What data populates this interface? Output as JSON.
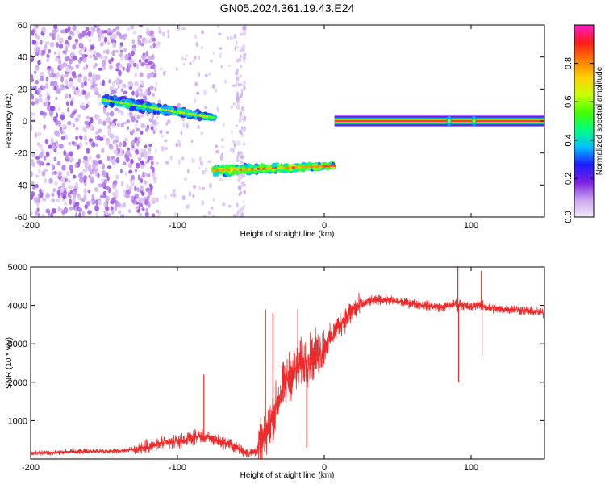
{
  "figure": {
    "title": "GN05.2024.361.19.43.E24"
  },
  "chart_data": [
    {
      "type": "heatmap",
      "name": "spectrogram",
      "xlabel": "Height of straight line (km)",
      "ylabel": "Frequency (Hz)",
      "xlim": [
        -200,
        150
      ],
      "ylim": [
        -60,
        60
      ],
      "xticks": [
        -200,
        -100,
        0,
        100
      ],
      "yticks": [
        -60,
        -40,
        -20,
        0,
        20,
        40,
        60
      ],
      "colorbar": {
        "label": "Normalized spectral amplitude",
        "range": [
          0,
          1
        ],
        "ticks": [
          0.0,
          0.2,
          0.4,
          0.6,
          0.8
        ],
        "tick_labels": [
          "0.0",
          "0.2",
          "0.4",
          "0.6",
          "0.8"
        ],
        "colormap": [
          "#f4ecfb",
          "#c9a2ee",
          "#7a1fe0",
          "#1d1dff",
          "#00bfff",
          "#00ff80",
          "#44ff00",
          "#c8ff00",
          "#ffd000",
          "#ff7a00",
          "#ff1a1a",
          "#ff1acb"
        ]
      },
      "features": [
        {
          "label": "scattered noise",
          "x_range": [
            -200,
            -115
          ],
          "y_range": [
            -60,
            60
          ],
          "amplitude": 0.12
        },
        {
          "label": "scattered noise sparse",
          "x_range": [
            -115,
            -55
          ],
          "y_range": [
            -60,
            60
          ],
          "amplitude": 0.06
        },
        {
          "label": "doppler track 1",
          "x_range": [
            -150,
            -75
          ],
          "y_start": 13,
          "y_end": 2,
          "amplitude": 0.38
        },
        {
          "label": "doppler track 2",
          "x_range": [
            -75,
            7
          ],
          "y_start": -31,
          "y_end": -28,
          "amplitude": 0.5
        },
        {
          "label": "carrier line",
          "x_range": [
            7,
            150
          ],
          "y": 0,
          "amplitude": 0.95
        }
      ]
    },
    {
      "type": "line",
      "name": "snr",
      "xlabel": "Height of straight line (km)",
      "ylabel": "SNR (10 * v/v)",
      "xlim": [
        -200,
        150
      ],
      "ylim": [
        0,
        5000
      ],
      "xticks": [
        -200,
        -100,
        0,
        100
      ],
      "yticks": [
        1000,
        2000,
        3000,
        4000,
        5000
      ],
      "color": "#ee2a2a",
      "series": [
        {
          "x": [
            -200,
            -180,
            -160,
            -140,
            -130,
            -120,
            -110,
            -100,
            -95,
            -90,
            -85,
            -80,
            -75,
            -70,
            -65,
            -60,
            -55,
            -50,
            -45,
            -40,
            -35,
            -30,
            -25,
            -20,
            -15,
            -10,
            -5,
            0,
            5,
            10,
            15,
            20,
            25,
            30,
            40,
            50,
            60,
            70,
            80,
            85,
            90,
            91,
            92,
            95,
            100,
            105,
            107,
            108,
            110,
            120,
            130,
            140,
            150
          ],
          "values": [
            150,
            180,
            200,
            210,
            250,
            320,
            400,
            450,
            500,
            540,
            600,
            550,
            500,
            440,
            400,
            300,
            200,
            150,
            250,
            600,
            1100,
            1700,
            2100,
            2300,
            2500,
            2600,
            2700,
            2900,
            3200,
            3500,
            3700,
            3900,
            4000,
            4100,
            4150,
            4100,
            4050,
            4000,
            3950,
            4000,
            4050,
            3900,
            4050,
            4000,
            3950,
            4050,
            3950,
            4000,
            3950,
            3900,
            3900,
            3850,
            3800
          ]
        }
      ],
      "spikes": [
        {
          "x": -82,
          "value": 2200
        },
        {
          "x": -40,
          "value": 3900
        },
        {
          "x": -35,
          "value": 3800
        },
        {
          "x": -18,
          "value": 3900
        },
        {
          "x": -12,
          "value": 300
        },
        {
          "x": 91,
          "value": 5000
        },
        {
          "x": 91.5,
          "value": 2000
        },
        {
          "x": 107,
          "value": 4900
        },
        {
          "x": 107.5,
          "value": 2700
        }
      ]
    }
  ]
}
